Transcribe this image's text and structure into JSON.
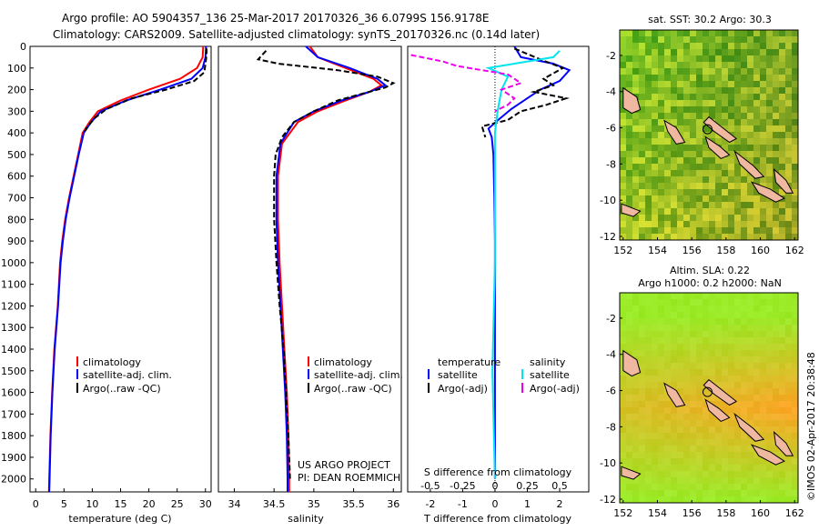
{
  "header": {
    "line1": "Argo profile: AO 5904357_136 25-Mar-2017 20170326_36 6.0799S 156.9178E",
    "line2": "Climatology: CARS2009. Satellite-adjusted climatology: synTS_20170326.nc (0.14d later)"
  },
  "colors": {
    "clim": "#ff0000",
    "sat": "#0000ff",
    "argo": "#000000",
    "sal_sat": "#00e5ee",
    "sal_argo": "#ee00ee"
  },
  "depth_axis": {
    "ticks": [
      0,
      100,
      200,
      300,
      400,
      500,
      600,
      700,
      800,
      900,
      1000,
      1100,
      1200,
      1300,
      1400,
      1500,
      1600,
      1700,
      1800,
      1900,
      2000
    ]
  },
  "chart_data": [
    {
      "type": "line",
      "id": "temperature",
      "xlabel": "temperature (deg C)",
      "xlim": [
        -1,
        31
      ],
      "ylim": [
        2060,
        0
      ],
      "xticks": [
        0,
        5,
        10,
        15,
        20,
        25,
        30
      ],
      "legend": [
        {
          "label": "climatology",
          "style": "clim"
        },
        {
          "label": "satellite-adj. clim.",
          "style": "sat"
        },
        {
          "label": "Argo(..raw -QC)",
          "style": "argo"
        }
      ],
      "series": [
        {
          "name": "climatology",
          "style": "clim",
          "points": [
            [
              29.6,
              0
            ],
            [
              29.5,
              50
            ],
            [
              28.5,
              100
            ],
            [
              25.5,
              150
            ],
            [
              20,
              200
            ],
            [
              15,
              250
            ],
            [
              11,
              300
            ],
            [
              9.5,
              350
            ],
            [
              8.3,
              400
            ],
            [
              7.5,
              500
            ],
            [
              6.7,
              600
            ],
            [
              5.9,
              700
            ],
            [
              5.2,
              800
            ],
            [
              4.7,
              900
            ],
            [
              4.3,
              1000
            ],
            [
              3.9,
              1200
            ],
            [
              3.3,
              1400
            ],
            [
              2.9,
              1600
            ],
            [
              2.6,
              1800
            ],
            [
              2.4,
              2000
            ],
            [
              2.35,
              2060
            ]
          ]
        },
        {
          "name": "satellite-adj. clim.",
          "style": "sat",
          "points": [
            [
              30.1,
              0
            ],
            [
              30,
              50
            ],
            [
              29.5,
              100
            ],
            [
              27.5,
              150
            ],
            [
              22,
              200
            ],
            [
              16,
              250
            ],
            [
              11.5,
              300
            ],
            [
              9.8,
              350
            ],
            [
              8.5,
              400
            ],
            [
              7.6,
              500
            ],
            [
              6.8,
              600
            ],
            [
              6,
              700
            ],
            [
              5.3,
              800
            ],
            [
              4.8,
              900
            ],
            [
              4.4,
              1000
            ],
            [
              3.95,
              1200
            ],
            [
              3.35,
              1400
            ],
            [
              2.95,
              1600
            ],
            [
              2.65,
              1800
            ],
            [
              2.45,
              2000
            ],
            [
              2.4,
              2060
            ]
          ]
        },
        {
          "name": "Argo",
          "style": "argo",
          "points": [
            [
              30.2,
              10
            ],
            [
              30.2,
              40
            ],
            [
              30,
              80
            ],
            [
              29.8,
              120
            ],
            [
              28,
              160
            ],
            [
              23,
              200
            ],
            [
              17,
              240
            ],
            [
              12.5,
              290
            ],
            [
              10.5,
              330
            ],
            [
              9.2,
              370
            ],
            [
              8.5,
              400
            ]
          ]
        }
      ]
    },
    {
      "type": "line",
      "id": "salinity",
      "xlabel": "salinity",
      "xlim": [
        33.8,
        36.1
      ],
      "ylim": [
        2060,
        0
      ],
      "xticks": [
        34,
        34.5,
        35,
        35.5,
        36
      ],
      "xticklabels": [
        "34",
        "34.5",
        "35",
        "35.5",
        "36"
      ],
      "legend": [
        {
          "label": "climatology",
          "style": "clim"
        },
        {
          "label": "satellite-adj. clim.",
          "style": "sat"
        },
        {
          "label": "Argo(..raw -QC)",
          "style": "argo"
        }
      ],
      "annotation": [
        "US ARGO PROJECT",
        "PI: DEAN ROEMMICH"
      ],
      "series": [
        {
          "name": "climatology",
          "style": "clim",
          "points": [
            [
              34.95,
              0
            ],
            [
              35.05,
              50
            ],
            [
              35.4,
              100
            ],
            [
              35.75,
              150
            ],
            [
              35.85,
              180
            ],
            [
              35.7,
              210
            ],
            [
              35.4,
              250
            ],
            [
              35.05,
              300
            ],
            [
              34.8,
              350
            ],
            [
              34.6,
              450
            ],
            [
              34.55,
              600
            ],
            [
              34.55,
              800
            ],
            [
              34.57,
              1000
            ],
            [
              34.6,
              1200
            ],
            [
              34.63,
              1400
            ],
            [
              34.66,
              1600
            ],
            [
              34.68,
              1800
            ],
            [
              34.69,
              2000
            ],
            [
              34.69,
              2060
            ]
          ]
        },
        {
          "name": "satellite-adj. clim.",
          "style": "sat",
          "points": [
            [
              34.9,
              0
            ],
            [
              35.05,
              50
            ],
            [
              35.45,
              100
            ],
            [
              35.8,
              150
            ],
            [
              35.9,
              180
            ],
            [
              35.7,
              210
            ],
            [
              35.35,
              250
            ],
            [
              35.0,
              300
            ],
            [
              34.75,
              350
            ],
            [
              34.58,
              450
            ],
            [
              34.53,
              600
            ],
            [
              34.53,
              800
            ],
            [
              34.55,
              1000
            ],
            [
              34.58,
              1200
            ],
            [
              34.61,
              1400
            ],
            [
              34.64,
              1600
            ],
            [
              34.66,
              1800
            ],
            [
              34.67,
              2000
            ],
            [
              34.67,
              2060
            ]
          ]
        },
        {
          "name": "Argo",
          "style": "argo",
          "points": [
            [
              34.4,
              20
            ],
            [
              34.3,
              60
            ],
            [
              34.55,
              80
            ],
            [
              35.3,
              110
            ],
            [
              35.8,
              140
            ],
            [
              36.0,
              170
            ],
            [
              35.9,
              190
            ],
            [
              35.6,
              220
            ],
            [
              35.3,
              250
            ],
            [
              35.0,
              300
            ],
            [
              34.75,
              350
            ],
            [
              34.6,
              420
            ],
            [
              34.52,
              500
            ],
            [
              34.5,
              600
            ],
            [
              34.5,
              800
            ],
            [
              34.53,
              1000
            ],
            [
              34.57,
              1200
            ],
            [
              34.62,
              1400
            ],
            [
              34.65,
              1600
            ],
            [
              34.68,
              1800
            ],
            [
              34.7,
              2000
            ]
          ]
        }
      ]
    },
    {
      "type": "line",
      "id": "difference",
      "xlabel": "T difference from climatology",
      "x2label": "S difference from climatology",
      "xlim": [
        -2.7,
        2.9
      ],
      "ylim": [
        2060,
        0
      ],
      "xticks": [
        -2,
        -1,
        0,
        1,
        2
      ],
      "x2lim": [
        -0.675,
        0.725
      ],
      "x2ticks": [
        -0.5,
        -0.25,
        0,
        0.25,
        0.5
      ],
      "x2ticklabels": [
        "-0.5",
        "-0.25",
        "0",
        "0.25",
        "0.5"
      ],
      "legend_temperature": {
        "title": "temperature",
        "items": [
          {
            "label": "satellite",
            "style": "sat"
          },
          {
            "label": "Argo(-adj)",
            "style": "argo"
          }
        ]
      },
      "legend_salinity": {
        "title": "salinity",
        "items": [
          {
            "label": "satellite",
            "style": "sal_sat"
          },
          {
            "label": "Argo(-adj)",
            "style": "sal_argo"
          }
        ]
      },
      "series": [
        {
          "name": "T satellite",
          "style": "sat",
          "points": [
            [
              0.6,
              0
            ],
            [
              0.8,
              50
            ],
            [
              1.8,
              80
            ],
            [
              2.3,
              110
            ],
            [
              2.0,
              160
            ],
            [
              1.4,
              200
            ],
            [
              1.0,
              240
            ],
            [
              0.5,
              290
            ],
            [
              0.1,
              340
            ],
            [
              -0.2,
              380
            ],
            [
              -0.1,
              420
            ],
            [
              -0.05,
              500
            ],
            [
              -0.02,
              700
            ],
            [
              0,
              900
            ],
            [
              0,
              1500
            ],
            [
              0,
              2000
            ]
          ]
        },
        {
          "name": "T Argo",
          "style": "argo",
          "points": [
            [
              0.6,
              10
            ],
            [
              1.4,
              60
            ],
            [
              2.1,
              100
            ],
            [
              1.5,
              150
            ],
            [
              1.8,
              180
            ],
            [
              1.2,
              210
            ],
            [
              2.2,
              240
            ],
            [
              1.6,
              270
            ],
            [
              0.8,
              300
            ],
            [
              0.4,
              340
            ],
            [
              -0.4,
              370
            ],
            [
              -0.3,
              420
            ]
          ]
        },
        {
          "name": "S satellite",
          "style": "sal_sat",
          "points": [
            [
              0.5,
              20
            ],
            [
              0.45,
              50
            ],
            [
              -0.05,
              100
            ],
            [
              0.1,
              140
            ],
            [
              0.05,
              200
            ],
            [
              0.02,
              300
            ],
            [
              0,
              400
            ],
            [
              0,
              1000
            ],
            [
              -0.02,
              1500
            ],
            [
              0,
              2000
            ]
          ]
        },
        {
          "name": "S Argo",
          "style": "sal_argo",
          "points": [
            [
              -0.65,
              40
            ],
            [
              -0.4,
              70
            ],
            [
              -0.3,
              90
            ],
            [
              0.1,
              130
            ],
            [
              0.2,
              170
            ],
            [
              0.05,
              200
            ],
            [
              0.15,
              240
            ],
            [
              0.1,
              270
            ],
            [
              0,
              300
            ]
          ]
        }
      ]
    },
    {
      "type": "heatmap",
      "id": "sst_map",
      "title": "sat. SST: 30.2 Argo: 30.3",
      "xlim": [
        151.8,
        162.2
      ],
      "ylim": [
        -12.2,
        -0.6
      ],
      "xticks": [
        152,
        154,
        156,
        158,
        160,
        162
      ],
      "yticks": [
        -2,
        -4,
        -6,
        -8,
        -10,
        -12
      ],
      "argo_position": {
        "lon": 156.92,
        "lat": -6.08
      }
    },
    {
      "type": "heatmap",
      "id": "sla_map",
      "title": "Altim. SLA: 0.22",
      "subtitle": "Argo h1000: 0.2 h2000: NaN",
      "xlim": [
        151.8,
        162.2
      ],
      "ylim": [
        -12.2,
        -0.6
      ],
      "xticks": [
        152,
        154,
        156,
        158,
        160,
        162
      ],
      "yticks": [
        -2,
        -4,
        -6,
        -8,
        -10,
        -12
      ],
      "argo_position": {
        "lon": 156.92,
        "lat": -6.08
      }
    }
  ],
  "footer": {
    "stamp": "©IMOS 02-Apr-2017 20:38:48"
  }
}
